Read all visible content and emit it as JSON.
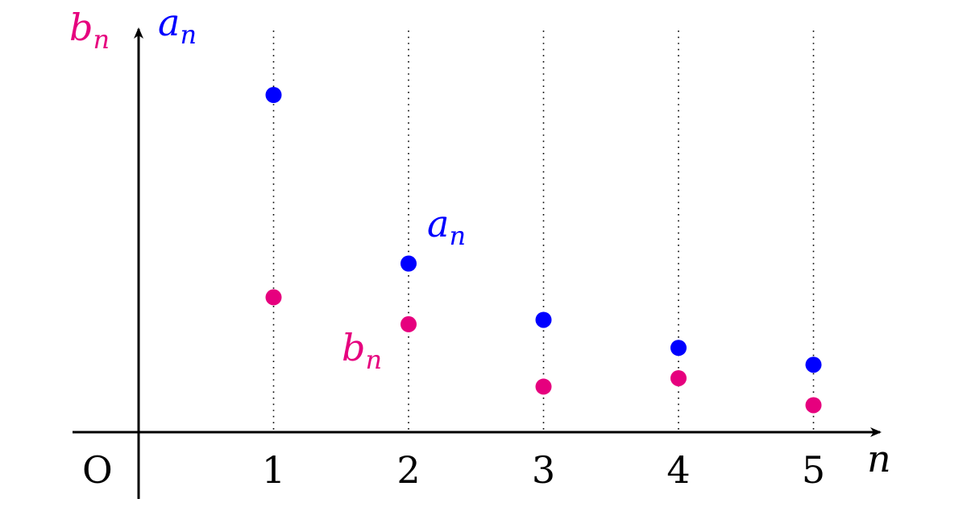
{
  "chart_data": {
    "type": "scatter",
    "x": [
      1,
      2,
      3,
      4,
      5
    ],
    "xlabel": "n",
    "ylabel_b": "b_n",
    "ylabel_a": "a_n",
    "origin_label": "O",
    "tick_labels": [
      "1",
      "2",
      "3",
      "4",
      "5"
    ],
    "grid": "dotted vertical lines at each n",
    "series": [
      {
        "name": "a_n",
        "color": "#0000ff",
        "values": [
          1.0,
          0.5,
          0.333,
          0.25,
          0.2
        ]
      },
      {
        "name": "b_n",
        "color": "#e6007e",
        "values": [
          0.4,
          0.32,
          0.135,
          0.16,
          0.08
        ]
      }
    ],
    "annotations": [
      {
        "text": "a_n",
        "color": "#0000ff",
        "near_x": 2
      },
      {
        "text": "b_n",
        "color": "#e6007e",
        "near_x": 2
      }
    ],
    "ylim": [
      0,
      1.2
    ],
    "xlim": [
      0,
      5.5
    ]
  }
}
